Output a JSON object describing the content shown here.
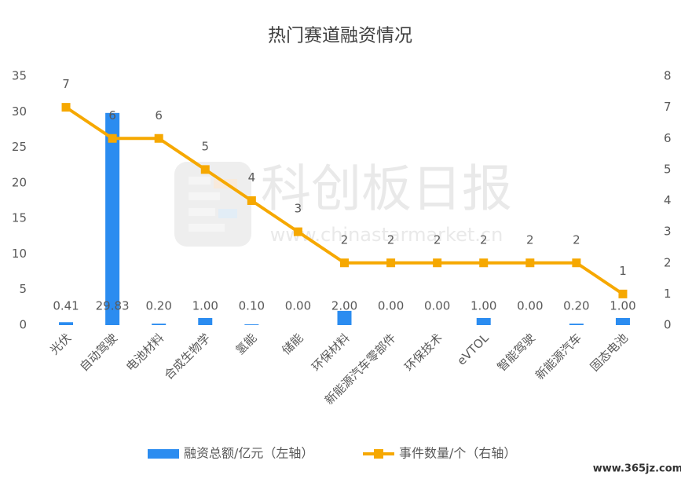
{
  "chart_data": {
    "type": "bar",
    "title": "热门赛道融资情况",
    "categories": [
      "光伏",
      "自动驾驶",
      "电池材料",
      "合成生物学",
      "氢能",
      "储能",
      "环保材料",
      "新能源汽车零部件",
      "环保技术",
      "eVTOL",
      "智能驾驶",
      "新能源汽车",
      "固态电池"
    ],
    "series": [
      {
        "name": "融资总额/亿元（左轴）",
        "type": "bar",
        "color": "#2b8cf0",
        "values": [
          0.41,
          29.83,
          0.2,
          1.0,
          0.1,
          0.0,
          2.0,
          0.0,
          0.0,
          1.0,
          0.0,
          0.2,
          1.0
        ],
        "value_labels": [
          "0.41",
          "29.83",
          "0.20",
          "1.00",
          "0.10",
          "0.00",
          "2.00",
          "0.00",
          "0.00",
          "1.00",
          "0.00",
          "0.20",
          "1.00"
        ]
      },
      {
        "name": "事件数量/个（右轴）",
        "type": "line",
        "axis": "y2",
        "color": "#f6a800",
        "values": [
          7,
          6,
          6,
          5,
          4,
          3,
          2,
          2,
          2,
          2,
          2,
          2,
          1
        ]
      }
    ],
    "ylim": [
      0,
      35
    ],
    "yticks": [
      0,
      5,
      10,
      15,
      20,
      25,
      30,
      35
    ],
    "y2lim": [
      0,
      8
    ],
    "y2ticks": [
      0,
      1,
      2,
      3,
      4,
      5,
      6,
      7,
      8
    ],
    "grid": false,
    "watermark": "科创板日报",
    "watermark_url": "www.chinastarmarket.cn",
    "source": "www.365jz.com"
  }
}
